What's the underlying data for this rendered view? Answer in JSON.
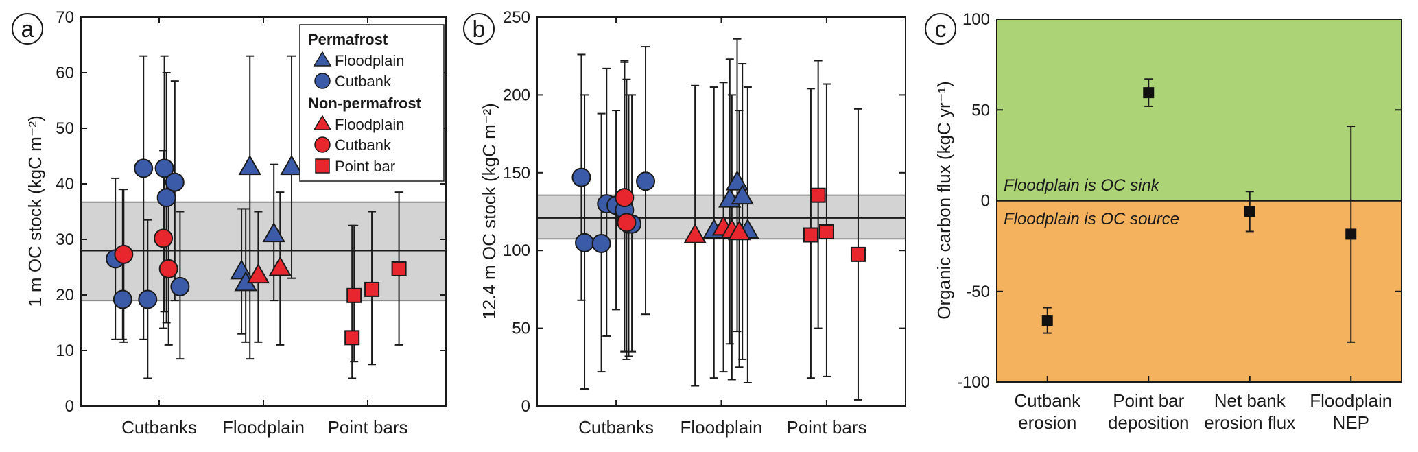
{
  "chart_data": [
    {
      "panel": "a",
      "type": "scatter",
      "ylabel": "1 m OC stock (kgC m⁻²)",
      "ylim": [
        0,
        70
      ],
      "yticks": [
        0,
        10,
        20,
        30,
        40,
        50,
        60,
        70
      ],
      "categories": [
        "Cutbanks",
        "Floodplain",
        "Point bars"
      ],
      "reference": {
        "mean": 28,
        "band": [
          19,
          36.7
        ]
      },
      "legend": {
        "position": "top-right",
        "groups": [
          {
            "title": "Permafrost",
            "entries": [
              {
                "label": "Floodplain",
                "marker": "triangle",
                "color": "#3b5ba9"
              },
              {
                "label": "Cutbank",
                "marker": "circle",
                "color": "#3b5ba9"
              }
            ]
          },
          {
            "title": "Non-permafrost",
            "entries": [
              {
                "label": "Floodplain",
                "marker": "triangle",
                "color": "#e8262d"
              },
              {
                "label": "Cutbank",
                "marker": "circle",
                "color": "#e8262d"
              },
              {
                "label": "Point bar",
                "marker": "square",
                "color": "#e8262d"
              }
            ]
          }
        ]
      },
      "series": [
        {
          "group": "Permafrost Cutbank",
          "marker": "circle",
          "color": "#3b5ba9",
          "points": [
            {
              "x": 0.58,
              "y": 26.5,
              "lo": 12,
              "hi": 41
            },
            {
              "x": 0.65,
              "y": 19.2,
              "lo": 12,
              "hi": 39
            },
            {
              "x": 0.85,
              "y": 42.8,
              "lo": 12,
              "hi": 63
            },
            {
              "x": 0.89,
              "y": 19.2,
              "lo": 5,
              "hi": 33.5
            },
            {
              "x": 1.05,
              "y": 42.8,
              "lo": 17,
              "hi": 63
            },
            {
              "x": 1.07,
              "y": 37.5,
              "lo": 15,
              "hi": 60
            },
            {
              "x": 1.15,
              "y": 40.3,
              "lo": 19,
              "hi": 58.5
            },
            {
              "x": 1.2,
              "y": 21.5,
              "lo": 8.5,
              "hi": 35
            }
          ]
        },
        {
          "group": "Non-permafrost Cutbank",
          "marker": "circle",
          "color": "#e8262d",
          "points": [
            {
              "x": 0.66,
              "y": 27.3,
              "lo": 11.5,
              "hi": 39
            },
            {
              "x": 1.04,
              "y": 30.2,
              "lo": 14,
              "hi": 46
            },
            {
              "x": 1.09,
              "y": 24.7,
              "lo": 11,
              "hi": 39
            }
          ]
        },
        {
          "group": "Permafrost Floodplain",
          "marker": "triangle",
          "color": "#3b5ba9",
          "points": [
            {
              "x": 1.79,
              "y": 24.3,
              "lo": 13,
              "hi": 35.5
            },
            {
              "x": 1.83,
              "y": 22.2,
              "lo": 11.5,
              "hi": 35.5
            },
            {
              "x": 1.87,
              "y": 43.1,
              "lo": 8.5,
              "hi": 63
            },
            {
              "x": 2.1,
              "y": 31.0,
              "lo": 19,
              "hi": 43.5
            },
            {
              "x": 2.27,
              "y": 43.1,
              "lo": 23,
              "hi": 63
            }
          ]
        },
        {
          "group": "Non-permafrost Floodplain",
          "marker": "triangle",
          "color": "#e8262d",
          "points": [
            {
              "x": 1.95,
              "y": 23.6,
              "lo": 11.5,
              "hi": 35
            },
            {
              "x": 2.16,
              "y": 24.9,
              "lo": 11,
              "hi": 38.5
            }
          ]
        },
        {
          "group": "Non-permafrost Point bar",
          "marker": "square",
          "color": "#e8262d",
          "points": [
            {
              "x": 2.85,
              "y": 12.3,
              "lo": 5,
              "hi": 32.5
            },
            {
              "x": 2.87,
              "y": 19.9,
              "lo": 8,
              "hi": 32.5
            },
            {
              "x": 3.04,
              "y": 21.0,
              "lo": 7.5,
              "hi": 35
            },
            {
              "x": 3.3,
              "y": 24.7,
              "lo": 11,
              "hi": 38.5
            }
          ]
        }
      ]
    },
    {
      "panel": "b",
      "type": "scatter",
      "ylabel": "12.4 m OC stock (kgC m⁻²)",
      "ylim": [
        0,
        250
      ],
      "yticks": [
        0,
        50,
        100,
        150,
        200,
        250
      ],
      "categories": [
        "Cutbanks",
        "Floodplain",
        "Point bars"
      ],
      "reference": {
        "mean": 121,
        "band": [
          107.5,
          135.5
        ]
      },
      "series": [
        {
          "group": "Permafrost Cutbank",
          "marker": "circle",
          "color": "#3b5ba9",
          "points": [
            {
              "x": 0.67,
              "y": 147,
              "lo": 68,
              "hi": 226
            },
            {
              "x": 0.7,
              "y": 105,
              "lo": 11,
              "hi": 200
            },
            {
              "x": 0.86,
              "y": 104.5,
              "lo": 22,
              "hi": 188
            },
            {
              "x": 0.91,
              "y": 130,
              "lo": 45,
              "hi": 217
            },
            {
              "x": 1.0,
              "y": 129,
              "lo": 62,
              "hi": 190
            },
            {
              "x": 1.08,
              "y": 126,
              "lo": 35,
              "hi": 221
            },
            {
              "x": 1.12,
              "y": 117,
              "lo": 32,
              "hi": 200
            },
            {
              "x": 1.15,
              "y": 117,
              "lo": 35,
              "hi": 200
            },
            {
              "x": 1.28,
              "y": 144.5,
              "lo": 59,
              "hi": 231
            }
          ]
        },
        {
          "group": "Non-permafrost Cutbank",
          "marker": "circle",
          "color": "#e8262d",
          "points": [
            {
              "x": 1.08,
              "y": 134,
              "lo": 35,
              "hi": 222
            },
            {
              "x": 1.1,
              "y": 118,
              "lo": 30,
              "hi": 210
            }
          ]
        },
        {
          "group": "Permafrost Floodplain",
          "marker": "triangle",
          "color": "#3b5ba9",
          "points": [
            {
              "x": 1.93,
              "y": 113,
              "lo": 18,
              "hi": 205
            },
            {
              "x": 2.08,
              "y": 133,
              "lo": 40,
              "hi": 223
            },
            {
              "x": 2.15,
              "y": 144,
              "lo": 48,
              "hi": 236
            },
            {
              "x": 2.2,
              "y": 135,
              "lo": 30,
              "hi": 220
            },
            {
              "x": 2.25,
              "y": 113,
              "lo": 15,
              "hi": 205
            }
          ]
        },
        {
          "group": "Non-permafrost Floodplain",
          "marker": "triangle",
          "color": "#e8262d",
          "points": [
            {
              "x": 1.75,
              "y": 110,
              "lo": 13,
              "hi": 206
            },
            {
              "x": 2.02,
              "y": 115,
              "lo": 22,
              "hi": 208
            },
            {
              "x": 2.1,
              "y": 113,
              "lo": 17,
              "hi": 200
            },
            {
              "x": 2.17,
              "y": 112,
              "lo": 25,
              "hi": 190
            }
          ]
        },
        {
          "group": "Non-permafrost Point bar",
          "marker": "square",
          "color": "#e8262d",
          "points": [
            {
              "x": 2.85,
              "y": 110,
              "lo": 18,
              "hi": 204
            },
            {
              "x": 2.92,
              "y": 135.5,
              "lo": 50,
              "hi": 222
            },
            {
              "x": 3.0,
              "y": 112,
              "lo": 19,
              "hi": 207
            },
            {
              "x": 3.3,
              "y": 97.5,
              "lo": 4,
              "hi": 191
            }
          ]
        }
      ]
    },
    {
      "panel": "c",
      "type": "scatter",
      "ylabel": "Organic carbon flux (kgC yr⁻¹)",
      "ylim": [
        -100,
        100
      ],
      "yticks": [
        -100,
        -50,
        0,
        50,
        100
      ],
      "categories": [
        [
          "Cutbank",
          "erosion"
        ],
        [
          "Point bar",
          "deposition"
        ],
        [
          "Net bank",
          "erosion flux"
        ],
        [
          "Floodplain",
          "NEP"
        ]
      ],
      "regions": [
        {
          "label": "Floodplain is OC sink",
          "range": [
            0,
            100
          ],
          "color": "#acd476"
        },
        {
          "label": "Floodplain is OC source",
          "range": [
            -100,
            0
          ],
          "color": "#f4b25f"
        }
      ],
      "points": [
        {
          "category": "Cutbank erosion",
          "y": -66,
          "lo": -73,
          "hi": -59
        },
        {
          "category": "Point bar deposition",
          "y": 59.5,
          "lo": 52,
          "hi": 67
        },
        {
          "category": "Net bank erosion flux",
          "y": -6,
          "lo": -17,
          "hi": 5
        },
        {
          "category": "Floodplain NEP",
          "y": -18.5,
          "lo": -78,
          "hi": 41
        }
      ]
    }
  ]
}
